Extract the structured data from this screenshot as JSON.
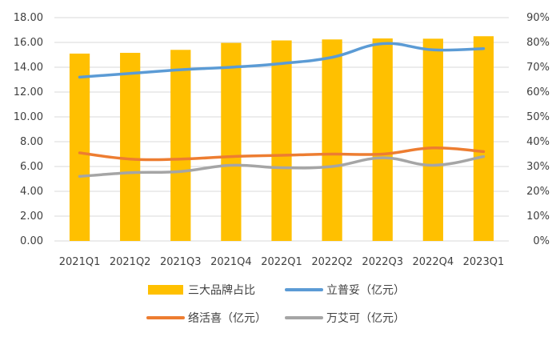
{
  "chart_data": {
    "type": "bar",
    "categories": [
      "2021Q1",
      "2021Q2",
      "2021Q3",
      "2021Q4",
      "2022Q1",
      "2022Q2",
      "2022Q3",
      "2022Q4",
      "2023Q1"
    ],
    "left_axis": {
      "min": 0,
      "max": 18,
      "step": 2,
      "tick_labels": [
        "0.00",
        "2.00",
        "4.00",
        "6.00",
        "8.00",
        "10.00",
        "12.00",
        "14.00",
        "16.00",
        "18.00"
      ]
    },
    "right_axis": {
      "min": 0,
      "max": 90,
      "step": 10,
      "tick_labels": [
        "0%",
        "10%",
        "20%",
        "30%",
        "40%",
        "50%",
        "60%",
        "70%",
        "80%",
        "90%"
      ]
    },
    "grid": true,
    "legend_position": "bottom",
    "series": [
      {
        "name": "三大品牌占比",
        "kind": "bar",
        "axis": "right",
        "color": "#FFC000",
        "values": [
          75.5,
          75.8,
          77.0,
          79.8,
          80.8,
          81.2,
          81.6,
          81.5,
          82.5
        ]
      },
      {
        "name": "立普妥（亿元）",
        "kind": "line",
        "axis": "left",
        "color": "#5B9BD5",
        "values": [
          13.2,
          13.5,
          13.8,
          14.0,
          14.3,
          14.8,
          15.9,
          15.4,
          15.5
        ]
      },
      {
        "name": "络活喜（亿元）",
        "kind": "line",
        "axis": "left",
        "color": "#ED7D31",
        "values": [
          7.1,
          6.6,
          6.6,
          6.8,
          6.9,
          7.0,
          7.0,
          7.5,
          7.2
        ]
      },
      {
        "name": "万艾可（亿元）",
        "kind": "line",
        "axis": "left",
        "color": "#A5A5A5",
        "values": [
          5.2,
          5.5,
          5.6,
          6.1,
          5.9,
          6.0,
          6.7,
          6.1,
          6.8
        ]
      }
    ]
  }
}
